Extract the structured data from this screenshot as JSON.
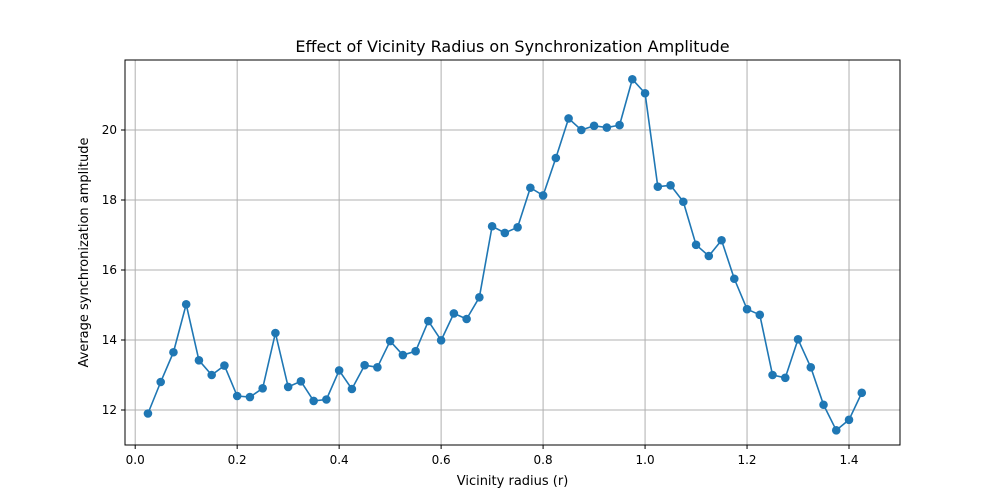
{
  "chart_data": {
    "type": "line",
    "title": "Effect of Vicinity Radius on Synchronization Amplitude",
    "xlabel": "Vicinity radius (r)",
    "ylabel": "Average synchronization amplitude",
    "xlim": [
      -0.02,
      1.5
    ],
    "ylim": [
      11.0,
      22.0
    ],
    "xticks": [
      0.0,
      0.2,
      0.4,
      0.6,
      0.8,
      1.0,
      1.2,
      1.4
    ],
    "xtick_labels": [
      "0.0",
      "0.2",
      "0.4",
      "0.6",
      "0.8",
      "1.0",
      "1.2",
      "1.4"
    ],
    "yticks": [
      12,
      14,
      16,
      18,
      20
    ],
    "ytick_labels": [
      "12",
      "14",
      "16",
      "18",
      "20"
    ],
    "grid": true,
    "series": [
      {
        "color": "#1f77b4",
        "marker": "circle",
        "x": [
          0.025,
          0.05,
          0.075,
          0.1,
          0.125,
          0.15,
          0.175,
          0.2,
          0.225,
          0.25,
          0.275,
          0.3,
          0.325,
          0.35,
          0.375,
          0.4,
          0.425,
          0.45,
          0.475,
          0.5,
          0.525,
          0.55,
          0.575,
          0.6,
          0.625,
          0.65,
          0.675,
          0.7,
          0.725,
          0.75,
          0.775,
          0.8,
          0.825,
          0.85,
          0.875,
          0.9,
          0.925,
          0.95,
          0.975,
          1.0,
          1.025,
          1.05,
          1.075,
          1.1,
          1.125,
          1.15,
          1.175,
          1.2,
          1.225,
          1.25,
          1.275,
          1.3,
          1.325,
          1.35,
          1.375,
          1.4,
          1.425
        ],
        "y": [
          11.9,
          12.8,
          13.65,
          15.02,
          13.42,
          13.0,
          13.27,
          12.4,
          12.37,
          12.62,
          14.2,
          12.66,
          12.82,
          12.26,
          12.3,
          13.13,
          12.6,
          13.28,
          13.22,
          13.97,
          13.57,
          13.68,
          14.54,
          13.99,
          14.76,
          14.6,
          15.22,
          17.25,
          17.06,
          17.22,
          18.35,
          18.13,
          19.2,
          20.33,
          20.0,
          20.12,
          20.07,
          20.14,
          21.45,
          21.05,
          18.38,
          18.42,
          17.95,
          16.72,
          16.4,
          16.85,
          15.75,
          14.88,
          14.72,
          13.0,
          12.92,
          14.02,
          13.22,
          12.15,
          11.42,
          11.72,
          12.49
        ]
      }
    ]
  }
}
